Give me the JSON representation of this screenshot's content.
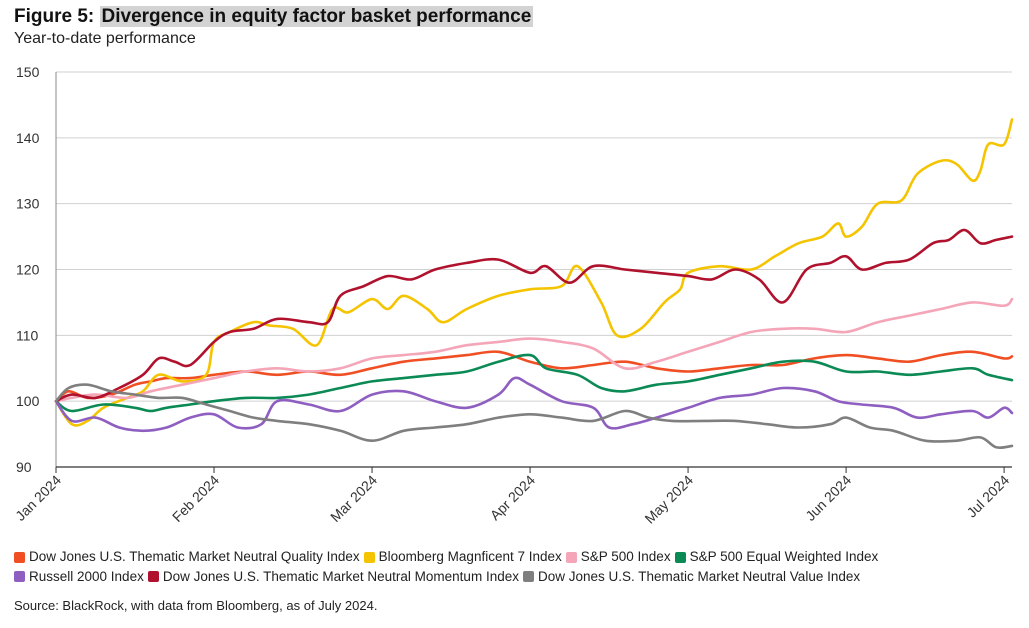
{
  "title_prefix": "Figure 5: ",
  "title_highlight": "Divergence in equity factor basket performance",
  "subtitle": "Year-to-date performance",
  "source": "Source: BlackRock, with data from Bloomberg, as of July 2024.",
  "chart_data": {
    "type": "line",
    "ylim": [
      90,
      150
    ],
    "yticks": [
      90,
      100,
      110,
      120,
      130,
      140,
      150
    ],
    "xlim": [
      0,
      6.05
    ],
    "xticks": [
      {
        "pos": 0,
        "label": "Jan 2024"
      },
      {
        "pos": 1,
        "label": "Feb 2024"
      },
      {
        "pos": 2,
        "label": "Mar 2024"
      },
      {
        "pos": 3,
        "label": "Apr 2024"
      },
      {
        "pos": 4,
        "label": "May 2024"
      },
      {
        "pos": 5,
        "label": "Jun 2024"
      },
      {
        "pos": 6,
        "label": "Jul 2024"
      }
    ],
    "grid": "horizontal",
    "legend_position": "bottom",
    "series": [
      {
        "name": "Dow Jones U.S. Thematic Market Neutral Quality Index",
        "color": "#f04e23",
        "points": [
          [
            0,
            100
          ],
          [
            0.08,
            101.5
          ],
          [
            0.2,
            100.5
          ],
          [
            0.35,
            101
          ],
          [
            0.5,
            102.5
          ],
          [
            0.6,
            103
          ],
          [
            0.7,
            103.5
          ],
          [
            0.85,
            103.5
          ],
          [
            1,
            104
          ],
          [
            1.2,
            104.5
          ],
          [
            1.4,
            104
          ],
          [
            1.6,
            104.5
          ],
          [
            1.8,
            104
          ],
          [
            2,
            105
          ],
          [
            2.2,
            106
          ],
          [
            2.4,
            106.5
          ],
          [
            2.6,
            107
          ],
          [
            2.8,
            107.5
          ],
          [
            3,
            106
          ],
          [
            3.2,
            105
          ],
          [
            3.4,
            105.5
          ],
          [
            3.6,
            106
          ],
          [
            3.8,
            105
          ],
          [
            4,
            104.5
          ],
          [
            4.2,
            105
          ],
          [
            4.4,
            105.5
          ],
          [
            4.6,
            105.5
          ],
          [
            4.8,
            106.5
          ],
          [
            5,
            107
          ],
          [
            5.2,
            106.5
          ],
          [
            5.4,
            106
          ],
          [
            5.6,
            107
          ],
          [
            5.8,
            107.5
          ],
          [
            6,
            106.5
          ],
          [
            6.05,
            106.8
          ]
        ]
      },
      {
        "name": "Bloomberg Magnficent 7 Index",
        "color": "#f5c400",
        "points": [
          [
            0,
            100
          ],
          [
            0.1,
            96.5
          ],
          [
            0.2,
            97
          ],
          [
            0.3,
            99
          ],
          [
            0.45,
            100.5
          ],
          [
            0.55,
            101.5
          ],
          [
            0.65,
            104
          ],
          [
            0.8,
            103
          ],
          [
            0.95,
            104
          ],
          [
            1,
            109
          ],
          [
            1.1,
            110.5
          ],
          [
            1.25,
            112
          ],
          [
            1.35,
            111.5
          ],
          [
            1.5,
            111
          ],
          [
            1.65,
            108.5
          ],
          [
            1.75,
            114
          ],
          [
            1.85,
            113.5
          ],
          [
            2,
            115.5
          ],
          [
            2.1,
            114
          ],
          [
            2.2,
            116
          ],
          [
            2.35,
            114
          ],
          [
            2.45,
            112
          ],
          [
            2.6,
            114
          ],
          [
            2.8,
            116
          ],
          [
            3,
            117
          ],
          [
            3.2,
            117.5
          ],
          [
            3.3,
            120.5
          ],
          [
            3.45,
            115
          ],
          [
            3.55,
            110
          ],
          [
            3.7,
            111
          ],
          [
            3.85,
            115
          ],
          [
            3.95,
            117
          ],
          [
            4,
            119.5
          ],
          [
            4.2,
            120.5
          ],
          [
            4.4,
            120
          ],
          [
            4.55,
            122
          ],
          [
            4.7,
            124
          ],
          [
            4.85,
            125
          ],
          [
            4.95,
            127
          ],
          [
            5,
            125
          ],
          [
            5.1,
            126.5
          ],
          [
            5.2,
            130
          ],
          [
            5.35,
            130.5
          ],
          [
            5.45,
            134.5
          ],
          [
            5.6,
            136.5
          ],
          [
            5.7,
            136
          ],
          [
            5.8,
            133.5
          ],
          [
            5.85,
            135
          ],
          [
            5.9,
            139
          ],
          [
            6,
            139
          ],
          [
            6.05,
            142.8
          ]
        ]
      },
      {
        "name": "S&P 500 Index",
        "color": "#f4a6b8",
        "points": [
          [
            0,
            100
          ],
          [
            0.1,
            100.5
          ],
          [
            0.25,
            101
          ],
          [
            0.45,
            100.5
          ],
          [
            0.6,
            101.5
          ],
          [
            0.8,
            102.5
          ],
          [
            1,
            103.5
          ],
          [
            1.2,
            104.5
          ],
          [
            1.4,
            105
          ],
          [
            1.6,
            104.5
          ],
          [
            1.8,
            105
          ],
          [
            2,
            106.5
          ],
          [
            2.2,
            107
          ],
          [
            2.4,
            107.5
          ],
          [
            2.6,
            108.5
          ],
          [
            2.8,
            109
          ],
          [
            3,
            109.5
          ],
          [
            3.2,
            109
          ],
          [
            3.4,
            108
          ],
          [
            3.6,
            105
          ],
          [
            3.8,
            106
          ],
          [
            4,
            107.5
          ],
          [
            4.2,
            109
          ],
          [
            4.4,
            110.5
          ],
          [
            4.6,
            111
          ],
          [
            4.8,
            111
          ],
          [
            5,
            110.5
          ],
          [
            5.2,
            112
          ],
          [
            5.4,
            113
          ],
          [
            5.6,
            114
          ],
          [
            5.8,
            115
          ],
          [
            6,
            114.5
          ],
          [
            6.05,
            115.5
          ]
        ]
      },
      {
        "name": "S&P 500 Equal Weighted Index",
        "color": "#0b8a55",
        "points": [
          [
            0,
            100
          ],
          [
            0.1,
            98.5
          ],
          [
            0.3,
            99.5
          ],
          [
            0.5,
            99
          ],
          [
            0.6,
            98.5
          ],
          [
            0.7,
            99
          ],
          [
            0.85,
            99.5
          ],
          [
            1,
            100
          ],
          [
            1.2,
            100.5
          ],
          [
            1.4,
            100.5
          ],
          [
            1.6,
            101
          ],
          [
            1.8,
            102
          ],
          [
            2,
            103
          ],
          [
            2.2,
            103.5
          ],
          [
            2.4,
            104
          ],
          [
            2.6,
            104.5
          ],
          [
            2.8,
            106
          ],
          [
            3,
            107
          ],
          [
            3.1,
            105
          ],
          [
            3.3,
            104
          ],
          [
            3.45,
            102
          ],
          [
            3.6,
            101.5
          ],
          [
            3.8,
            102.5
          ],
          [
            4,
            103
          ],
          [
            4.2,
            104
          ],
          [
            4.4,
            105
          ],
          [
            4.6,
            106
          ],
          [
            4.8,
            106
          ],
          [
            5,
            104.5
          ],
          [
            5.2,
            104.5
          ],
          [
            5.4,
            104
          ],
          [
            5.6,
            104.5
          ],
          [
            5.8,
            105
          ],
          [
            5.9,
            104
          ],
          [
            6.05,
            103.2
          ]
        ]
      },
      {
        "name": "Russell 2000 Index",
        "color": "#8e5fc1",
        "points": [
          [
            0,
            100
          ],
          [
            0.1,
            97
          ],
          [
            0.25,
            97.5
          ],
          [
            0.4,
            96
          ],
          [
            0.55,
            95.5
          ],
          [
            0.7,
            96
          ],
          [
            0.85,
            97.5
          ],
          [
            1,
            98
          ],
          [
            1.15,
            96
          ],
          [
            1.3,
            96.5
          ],
          [
            1.4,
            100
          ],
          [
            1.6,
            99.5
          ],
          [
            1.8,
            98.5
          ],
          [
            2,
            101
          ],
          [
            2.2,
            101.5
          ],
          [
            2.4,
            100
          ],
          [
            2.6,
            99
          ],
          [
            2.8,
            101
          ],
          [
            2.9,
            103.5
          ],
          [
            3,
            102.5
          ],
          [
            3.2,
            100
          ],
          [
            3.4,
            99
          ],
          [
            3.5,
            96
          ],
          [
            3.65,
            96.5
          ],
          [
            3.8,
            97.5
          ],
          [
            4,
            99
          ],
          [
            4.2,
            100.5
          ],
          [
            4.4,
            101
          ],
          [
            4.6,
            102
          ],
          [
            4.8,
            101.5
          ],
          [
            4.95,
            100
          ],
          [
            5.1,
            99.5
          ],
          [
            5.3,
            99
          ],
          [
            5.45,
            97.5
          ],
          [
            5.6,
            98
          ],
          [
            5.8,
            98.5
          ],
          [
            5.9,
            97.5
          ],
          [
            6,
            99
          ],
          [
            6.05,
            98.2
          ]
        ]
      },
      {
        "name": "Dow Jones U.S. Thematic Market Neutral Momentum Index",
        "color": "#b0122e",
        "points": [
          [
            0,
            100
          ],
          [
            0.1,
            101
          ],
          [
            0.25,
            100.5
          ],
          [
            0.4,
            102
          ],
          [
            0.55,
            104
          ],
          [
            0.65,
            106.5
          ],
          [
            0.75,
            106
          ],
          [
            0.85,
            105.5
          ],
          [
            1,
            109
          ],
          [
            1.1,
            110.5
          ],
          [
            1.25,
            111
          ],
          [
            1.4,
            112.5
          ],
          [
            1.6,
            112
          ],
          [
            1.72,
            112
          ],
          [
            1.8,
            116
          ],
          [
            1.95,
            117.5
          ],
          [
            2.1,
            119
          ],
          [
            2.25,
            118.5
          ],
          [
            2.4,
            120
          ],
          [
            2.6,
            121
          ],
          [
            2.8,
            121.5
          ],
          [
            3,
            119.5
          ],
          [
            3.1,
            120.5
          ],
          [
            3.25,
            118
          ],
          [
            3.4,
            120.5
          ],
          [
            3.6,
            120
          ],
          [
            3.8,
            119.5
          ],
          [
            4,
            119
          ],
          [
            4.15,
            118.5
          ],
          [
            4.3,
            120
          ],
          [
            4.45,
            118.5
          ],
          [
            4.6,
            115
          ],
          [
            4.75,
            120
          ],
          [
            4.9,
            121
          ],
          [
            5,
            122
          ],
          [
            5.1,
            120
          ],
          [
            5.25,
            121
          ],
          [
            5.4,
            121.5
          ],
          [
            5.55,
            124
          ],
          [
            5.65,
            124.5
          ],
          [
            5.75,
            126
          ],
          [
            5.85,
            124
          ],
          [
            5.95,
            124.5
          ],
          [
            6.05,
            125
          ]
        ]
      },
      {
        "name": "Dow Jones U.S. Thematic Market Neutral Value Index",
        "color": "#7f7f7f",
        "points": [
          [
            0,
            100
          ],
          [
            0.08,
            102
          ],
          [
            0.2,
            102.5
          ],
          [
            0.35,
            101.5
          ],
          [
            0.5,
            101
          ],
          [
            0.65,
            100.5
          ],
          [
            0.8,
            100.5
          ],
          [
            0.95,
            99.5
          ],
          [
            1.1,
            98.5
          ],
          [
            1.25,
            97.5
          ],
          [
            1.4,
            97
          ],
          [
            1.6,
            96.5
          ],
          [
            1.8,
            95.5
          ],
          [
            2,
            94
          ],
          [
            2.2,
            95.5
          ],
          [
            2.4,
            96
          ],
          [
            2.6,
            96.5
          ],
          [
            2.8,
            97.5
          ],
          [
            3,
            98
          ],
          [
            3.2,
            97.5
          ],
          [
            3.4,
            97
          ],
          [
            3.6,
            98.5
          ],
          [
            3.75,
            97.5
          ],
          [
            3.9,
            97
          ],
          [
            4.1,
            97
          ],
          [
            4.3,
            97
          ],
          [
            4.5,
            96.5
          ],
          [
            4.7,
            96
          ],
          [
            4.9,
            96.5
          ],
          [
            5,
            97.5
          ],
          [
            5.15,
            96
          ],
          [
            5.3,
            95.5
          ],
          [
            5.5,
            94
          ],
          [
            5.7,
            94
          ],
          [
            5.85,
            94.5
          ],
          [
            5.95,
            93
          ],
          [
            6.05,
            93.2
          ]
        ]
      }
    ]
  }
}
